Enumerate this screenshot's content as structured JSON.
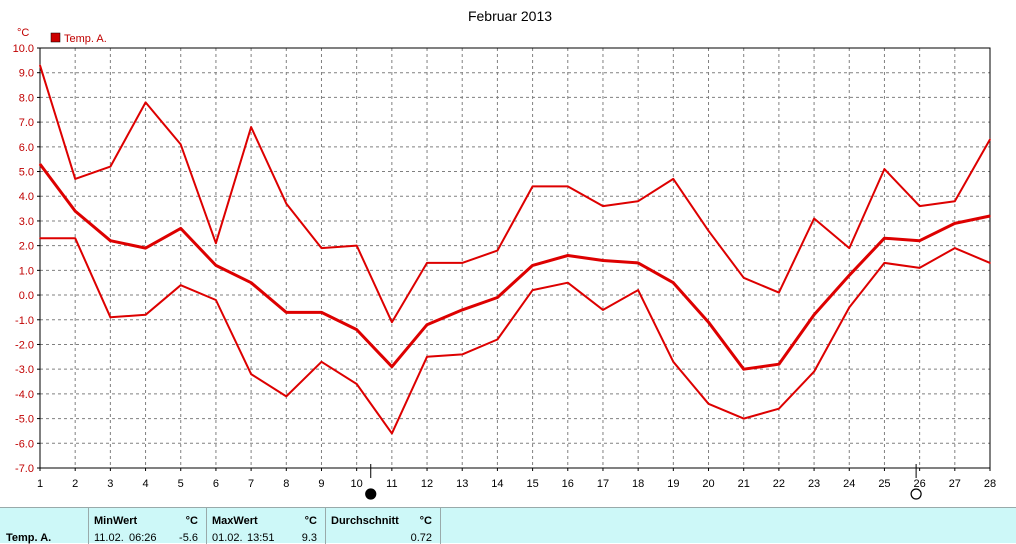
{
  "chart_data": {
    "type": "line",
    "title": "Februar 2013",
    "ylabel": "°C",
    "legend": {
      "label": "Temp. A.",
      "placement": "top-left",
      "color": "#cc0000"
    },
    "ylim": [
      -7.0,
      10.0
    ],
    "xlim": [
      1,
      28
    ],
    "grid": true,
    "x": [
      1,
      2,
      3,
      4,
      5,
      6,
      7,
      8,
      9,
      10,
      11,
      12,
      13,
      14,
      15,
      16,
      17,
      18,
      19,
      20,
      21,
      22,
      23,
      24,
      25,
      26,
      27,
      28
    ],
    "yticks": [
      "10.0",
      "9.0",
      "8.0",
      "7.0",
      "6.0",
      "5.0",
      "4.0",
      "3.0",
      "2.0",
      "1.0",
      "0.0",
      "-1.0",
      "-2.0",
      "-3.0",
      "-4.0",
      "-5.0",
      "-6.0",
      "-7.0"
    ],
    "series": [
      {
        "role": "max",
        "values": [
          9.3,
          4.7,
          5.2,
          7.8,
          6.1,
          2.1,
          6.8,
          3.7,
          1.9,
          2.0,
          -1.1,
          1.3,
          1.3,
          1.8,
          4.4,
          4.4,
          3.6,
          3.8,
          4.7,
          2.6,
          0.7,
          0.1,
          3.1,
          1.9,
          5.1,
          3.6,
          3.8,
          6.3
        ]
      },
      {
        "role": "avg",
        "values": [
          5.3,
          3.4,
          2.2,
          1.9,
          2.7,
          1.2,
          0.5,
          -0.7,
          -0.7,
          -1.4,
          -2.9,
          -1.2,
          -0.6,
          -0.1,
          1.2,
          1.6,
          1.4,
          1.3,
          0.5,
          -1.1,
          -3.0,
          -2.8,
          -0.8,
          0.8,
          2.3,
          2.2,
          2.9,
          3.2
        ]
      },
      {
        "role": "min",
        "values": [
          2.3,
          2.3,
          -0.9,
          -0.8,
          0.4,
          -0.2,
          -3.2,
          -4.1,
          -2.7,
          -3.6,
          -5.6,
          -2.5,
          -2.4,
          -1.8,
          0.2,
          0.5,
          -0.6,
          0.2,
          -2.7,
          -4.4,
          -5.0,
          -4.6,
          -3.1,
          -0.5,
          1.3,
          1.1,
          1.9,
          1.3
        ]
      }
    ],
    "moon_markers": [
      {
        "phase": "new-moon",
        "x": 10.4
      },
      {
        "phase": "full-moon",
        "x": 25.9
      }
    ],
    "line_color": "#dd0000"
  },
  "stats": {
    "row_label": "Temp. A.",
    "min": {
      "header": "MinWert",
      "unit": "°C",
      "date": "11.02.",
      "time": "06:26",
      "value": "-5.6"
    },
    "max": {
      "header": "MaxWert",
      "unit": "°C",
      "date": "01.02.",
      "time": "13:51",
      "value": "9.3"
    },
    "avg": {
      "header": "Durchschnitt",
      "unit": "°C",
      "value": "0.72"
    }
  }
}
